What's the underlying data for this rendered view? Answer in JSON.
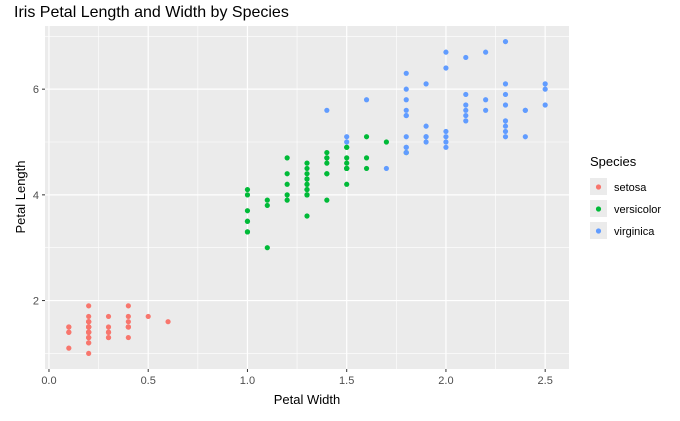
{
  "chart_data": {
    "type": "scatter",
    "title": "Iris Petal Length and Width by Species",
    "xlabel": "Petal Width",
    "ylabel": "Petal Length",
    "xlim": [
      -0.02,
      2.62
    ],
    "ylim": [
      0.705,
      7.195
    ],
    "xticks": [
      0,
      0.5,
      1,
      1.5,
      2,
      2.5
    ],
    "xtick_labels": [
      "0.0",
      "0.5",
      "1.0",
      "1.5",
      "2.0",
      "2.5"
    ],
    "yticks": [
      2,
      4,
      6
    ],
    "ytick_labels": [
      "2",
      "4",
      "6"
    ],
    "grid": true,
    "legend_title": "Species",
    "legend_position": "right",
    "series": [
      {
        "name": "setosa",
        "color": "#F8766D",
        "x": [
          0.2,
          0.2,
          0.2,
          0.2,
          0.2,
          0.4,
          0.3,
          0.2,
          0.2,
          0.1,
          0.2,
          0.2,
          0.1,
          0.1,
          0.2,
          0.4,
          0.4,
          0.3,
          0.3,
          0.3,
          0.2,
          0.4,
          0.2,
          0.5,
          0.2,
          0.2,
          0.4,
          0.2,
          0.2,
          0.2,
          0.2,
          0.4,
          0.1,
          0.2,
          0.2,
          0.2,
          0.2,
          0.1,
          0.2,
          0.2,
          0.3,
          0.3,
          0.2,
          0.6,
          0.4,
          0.3,
          0.2,
          0.2,
          0.2,
          0.2
        ],
        "y": [
          1.4,
          1.4,
          1.3,
          1.5,
          1.4,
          1.7,
          1.4,
          1.5,
          1.4,
          1.5,
          1.5,
          1.6,
          1.4,
          1.1,
          1.2,
          1.5,
          1.3,
          1.4,
          1.7,
          1.5,
          1.7,
          1.5,
          1.0,
          1.7,
          1.9,
          1.6,
          1.6,
          1.5,
          1.4,
          1.6,
          1.6,
          1.5,
          1.5,
          1.4,
          1.5,
          1.2,
          1.3,
          1.4,
          1.3,
          1.5,
          1.3,
          1.3,
          1.3,
          1.6,
          1.9,
          1.4,
          1.6,
          1.4,
          1.5,
          1.4
        ]
      },
      {
        "name": "versicolor",
        "color": "#00BA38",
        "x": [
          1.4,
          1.5,
          1.5,
          1.3,
          1.5,
          1.3,
          1.6,
          1.0,
          1.3,
          1.4,
          1.0,
          1.5,
          1.0,
          1.4,
          1.3,
          1.4,
          1.5,
          1.0,
          1.5,
          1.1,
          1.8,
          1.3,
          1.5,
          1.2,
          1.3,
          1.4,
          1.4,
          1.7,
          1.5,
          1.0,
          1.1,
          1.0,
          1.2,
          1.6,
          1.5,
          1.6,
          1.5,
          1.3,
          1.3,
          1.3,
          1.2,
          1.4,
          1.2,
          1.0,
          1.3,
          1.2,
          1.3,
          1.3,
          1.1,
          1.3
        ],
        "y": [
          4.7,
          4.5,
          4.9,
          4.0,
          4.6,
          4.5,
          4.7,
          3.3,
          4.6,
          3.9,
          3.5,
          4.2,
          4.0,
          4.7,
          3.6,
          4.4,
          4.5,
          4.1,
          4.5,
          3.9,
          4.8,
          4.0,
          4.9,
          4.7,
          4.3,
          4.4,
          4.8,
          5.0,
          4.5,
          3.5,
          3.8,
          3.7,
          3.9,
          5.1,
          4.5,
          4.5,
          4.7,
          4.4,
          4.1,
          4.0,
          4.4,
          4.6,
          4.0,
          3.3,
          4.2,
          4.2,
          4.2,
          4.3,
          3.0,
          4.1
        ]
      },
      {
        "name": "virginica",
        "color": "#619CFF",
        "x": [
          2.5,
          1.9,
          2.1,
          1.8,
          2.2,
          2.1,
          1.7,
          1.8,
          1.8,
          2.5,
          2.0,
          1.9,
          2.1,
          2.0,
          2.4,
          2.3,
          1.8,
          2.2,
          2.3,
          1.5,
          2.3,
          2.0,
          2.0,
          1.8,
          2.1,
          1.8,
          1.8,
          1.8,
          2.1,
          1.6,
          1.9,
          2.0,
          2.2,
          1.5,
          1.4,
          2.3,
          2.4,
          1.8,
          1.8,
          2.1,
          2.4,
          2.3,
          1.9,
          2.3,
          2.5,
          2.3,
          1.9,
          2.0,
          2.3,
          1.8
        ],
        "y": [
          6.0,
          5.1,
          5.9,
          5.6,
          5.8,
          6.6,
          4.5,
          6.3,
          5.8,
          6.1,
          5.1,
          5.3,
          5.5,
          5.0,
          5.1,
          5.3,
          5.5,
          6.7,
          6.9,
          5.0,
          5.7,
          4.9,
          6.7,
          4.9,
          5.7,
          6.0,
          4.8,
          4.9,
          5.6,
          5.8,
          6.1,
          6.4,
          5.6,
          5.1,
          5.6,
          6.1,
          5.6,
          5.5,
          4.8,
          5.4,
          5.6,
          5.1,
          5.1,
          5.9,
          5.7,
          5.2,
          5.0,
          5.2,
          5.4,
          5.1
        ]
      }
    ]
  }
}
